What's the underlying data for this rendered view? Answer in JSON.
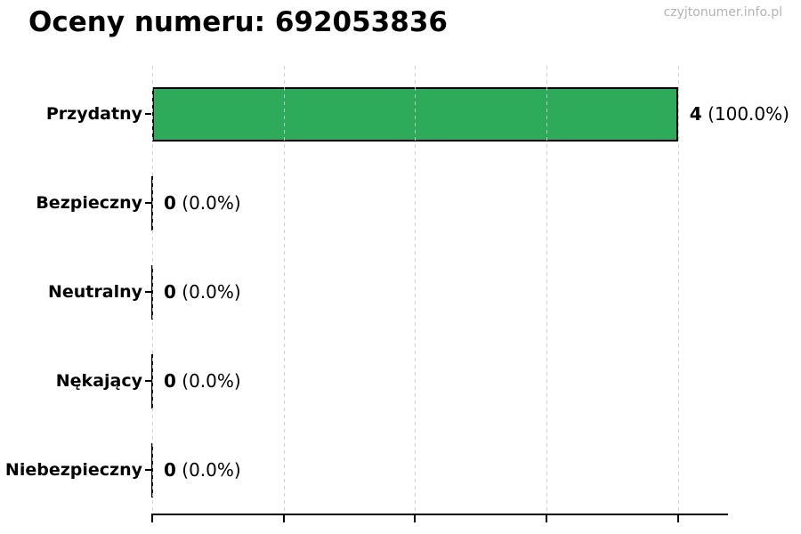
{
  "chart_data": {
    "type": "bar",
    "orientation": "horizontal",
    "title": "Oceny numeru: 692053836",
    "watermark": "czyjtonumer.info.pl",
    "categories": [
      "Przydatny",
      "Bezpieczny",
      "Neutralny",
      "Nękający",
      "Niebezpieczny"
    ],
    "values": [
      4,
      0,
      0,
      0,
      0
    ],
    "count_labels": [
      "4",
      "0",
      "0",
      "0",
      "0"
    ],
    "pct_labels": [
      "(100.0%)",
      "(0.0%)",
      "(0.0%)",
      "(0.0%)",
      "(0.0%)"
    ],
    "total_votes": 4,
    "xlim": [
      0,
      4.4
    ],
    "xticks": [
      0,
      1,
      2,
      3,
      4
    ],
    "xtick_labels_visible": false,
    "ylabel": "",
    "xlabel": "",
    "grid": {
      "axis": "x",
      "style": "dashed",
      "color": "#c9c9c9",
      "on_top": true
    },
    "legend": "none",
    "bar_color": "#2daa5a",
    "bar_edge_color": "#000000",
    "zero_bar_color": "#000000",
    "title_color": "#000000",
    "watermark_color": "#b3b3b3"
  }
}
